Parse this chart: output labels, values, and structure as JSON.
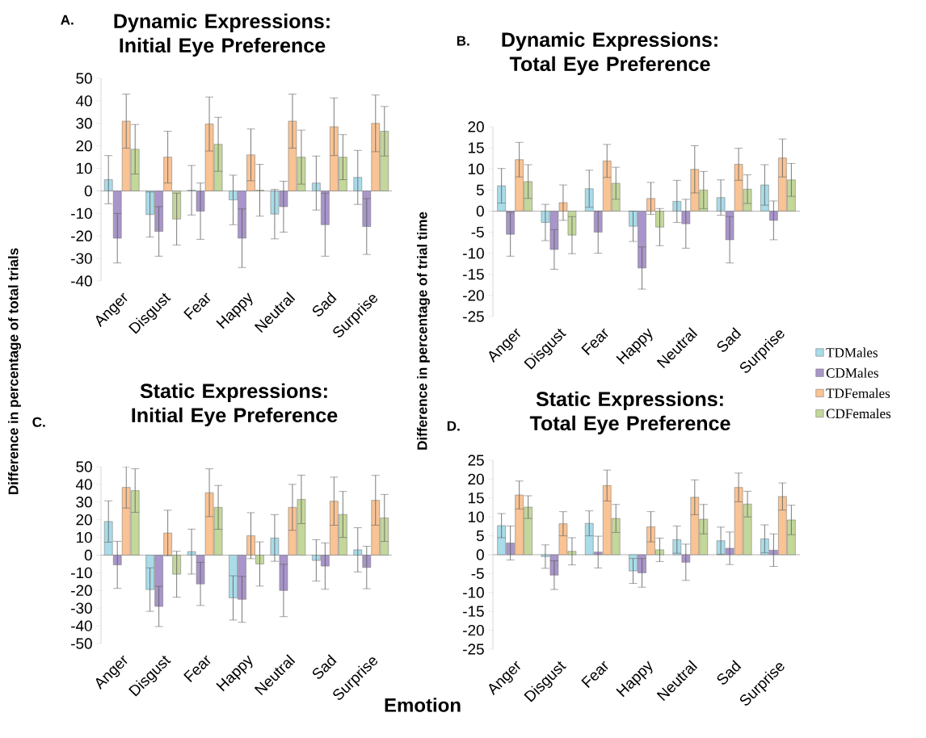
{
  "chart_data": [
    {
      "type": "bar",
      "title": "Dynamic Expressions: Initial Eye Preference",
      "annotations": [
        "A."
      ],
      "ylabel": "Difference in percentage of total trials",
      "categories": [
        "Anger",
        "Disgust",
        "Fear",
        "Happy",
        "Neutral",
        "Sad",
        "Surprise"
      ],
      "ylim": [
        -40,
        50
      ],
      "yticks": [
        -40,
        -30,
        -20,
        -10,
        0,
        10,
        20,
        30,
        40,
        50
      ],
      "series": [
        {
          "color": "#a9dbe8",
          "values": [
            5,
            -10.5,
            0.3,
            -4,
            -10.3,
            3.5,
            6
          ],
          "errors": [
            10.7,
            10,
            11,
            11,
            11,
            12,
            12
          ]
        },
        {
          "color": "#a895c9",
          "values": [
            -21,
            -18,
            -9,
            -21,
            -7,
            -15,
            -15.8
          ],
          "errors": [
            11,
            11,
            12.5,
            13,
            11.3,
            14,
            12.4
          ]
        },
        {
          "color": "#f9c394",
          "values": [
            31,
            15,
            29.7,
            16,
            31,
            28.5,
            30
          ],
          "errors": [
            12,
            11.5,
            12,
            11.5,
            12,
            12.8,
            12.6
          ]
        },
        {
          "color": "#c4d79b",
          "values": [
            18.5,
            -12.5,
            20.7,
            0.3,
            15,
            15,
            26.5
          ],
          "errors": [
            11,
            11.5,
            12,
            11.5,
            12,
            10,
            11
          ]
        }
      ]
    },
    {
      "type": "bar",
      "title": "Dynamic Expressions: Total Eye Preference",
      "annotations": [
        "B."
      ],
      "ylabel": "Difference in percentage of trial time",
      "categories": [
        "Anger",
        "Disgust",
        "Fear",
        "Happy",
        "Neutral",
        "Sad",
        "Surprise"
      ],
      "ylim": [
        -25,
        20
      ],
      "yticks": [
        -25,
        -20,
        -15,
        -10,
        -5,
        0,
        5,
        10,
        15,
        20
      ],
      "series": [
        {
          "color": "#a9dbe8",
          "values": [
            6,
            -2.7,
            5.3,
            -3.6,
            2.3,
            3.2,
            6.2
          ],
          "errors": [
            4.1,
            4.3,
            4.4,
            3.6,
            5,
            4.2,
            4.8
          ]
        },
        {
          "color": "#a895c9",
          "values": [
            -5.5,
            -9.1,
            -5,
            -13.5,
            -3,
            -6.8,
            -2.2
          ],
          "errors": [
            5.2,
            4.7,
            5,
            5,
            5.8,
            5.5,
            4.6
          ]
        },
        {
          "color": "#f9c394",
          "values": [
            12.2,
            2,
            11.9,
            3,
            9.9,
            11.1,
            12.6
          ],
          "errors": [
            4.1,
            4.2,
            3.9,
            3.8,
            5.6,
            3.8,
            4.5
          ]
        },
        {
          "color": "#c4d79b",
          "values": [
            7,
            -5.7,
            6.6,
            -3.8,
            5,
            5.2,
            7.4
          ],
          "errors": [
            4,
            4.4,
            3.8,
            4.4,
            4.4,
            3.4,
            3.9
          ]
        }
      ]
    },
    {
      "type": "bar",
      "title": "Static Expressions: Initial Eye Preference",
      "annotations": [
        "C."
      ],
      "xlabel": "Emotion",
      "categories": [
        "Anger",
        "Disgust",
        "Fear",
        "Happy",
        "Neutral",
        "Sad",
        "Surprise"
      ],
      "ylim": [
        -50,
        50
      ],
      "yticks": [
        -50,
        -40,
        -30,
        -20,
        -10,
        0,
        10,
        20,
        30,
        40,
        50
      ],
      "series": [
        {
          "color": "#a9dbe8",
          "values": [
            19,
            -19.5,
            2,
            -24.2,
            9.7,
            -3,
            3
          ],
          "errors": [
            11.7,
            12.3,
            12.7,
            12.5,
            13.2,
            11.7,
            12.5
          ]
        },
        {
          "color": "#a895c9",
          "values": [
            -5.5,
            -29,
            -16.3,
            -25,
            -20,
            -6.2,
            -7
          ],
          "errors": [
            13.3,
            11.4,
            12.2,
            13,
            14.8,
            13.1,
            12
          ]
        },
        {
          "color": "#f9c394",
          "values": [
            38.3,
            12.5,
            35.3,
            11,
            27,
            30.5,
            31
          ],
          "errors": [
            11.7,
            12.9,
            13.5,
            13,
            13,
            13.6,
            14.1
          ]
        },
        {
          "color": "#c4d79b",
          "values": [
            36.5,
            -10.8,
            27,
            -5,
            31.5,
            23,
            21
          ],
          "errors": [
            12.3,
            13,
            12.4,
            12.5,
            13.7,
            13,
            13.3
          ]
        }
      ]
    },
    {
      "type": "bar",
      "title": "Static Expressions: Total Eye Preference",
      "annotations": [
        "D."
      ],
      "legend": "right",
      "categories": [
        "Anger",
        "Disgust",
        "Fear",
        "Happy",
        "Neutral",
        "Sad",
        "Surprise"
      ],
      "ylim": [
        -25,
        25
      ],
      "yticks": [
        -25,
        -20,
        -15,
        -10,
        -5,
        0,
        5,
        10,
        15,
        20,
        25
      ],
      "series": [
        {
          "name": "TDMales",
          "color": "#a9dbe8",
          "values": [
            7.7,
            -0.5,
            8.3,
            -4.3,
            4,
            3.7,
            4.2
          ],
          "errors": [
            3.2,
            3.1,
            3.3,
            3.3,
            3.6,
            3.6,
            3.7
          ]
        },
        {
          "name": "CDMales",
          "color": "#a895c9",
          "values": [
            3.1,
            -5.4,
            0.7,
            -4.8,
            -2,
            1.7,
            1.2
          ],
          "errors": [
            4.5,
            3.8,
            4.2,
            3.8,
            4.8,
            4.3,
            4.3
          ]
        },
        {
          "name": "TDFemales",
          "color": "#f9c394",
          "values": [
            15.8,
            8.2,
            18.3,
            7.4,
            15.2,
            17.8,
            15.4
          ],
          "errors": [
            3.7,
            3.2,
            4.1,
            4,
            4.6,
            3.8,
            3.6
          ]
        },
        {
          "name": "CDFemales",
          "color": "#c4d79b",
          "values": [
            12.6,
            0.9,
            9.6,
            1.3,
            9.4,
            13.4,
            9.2
          ],
          "errors": [
            3,
            3.6,
            3.7,
            3.1,
            3.9,
            3.4,
            3.9
          ]
        }
      ]
    }
  ]
}
